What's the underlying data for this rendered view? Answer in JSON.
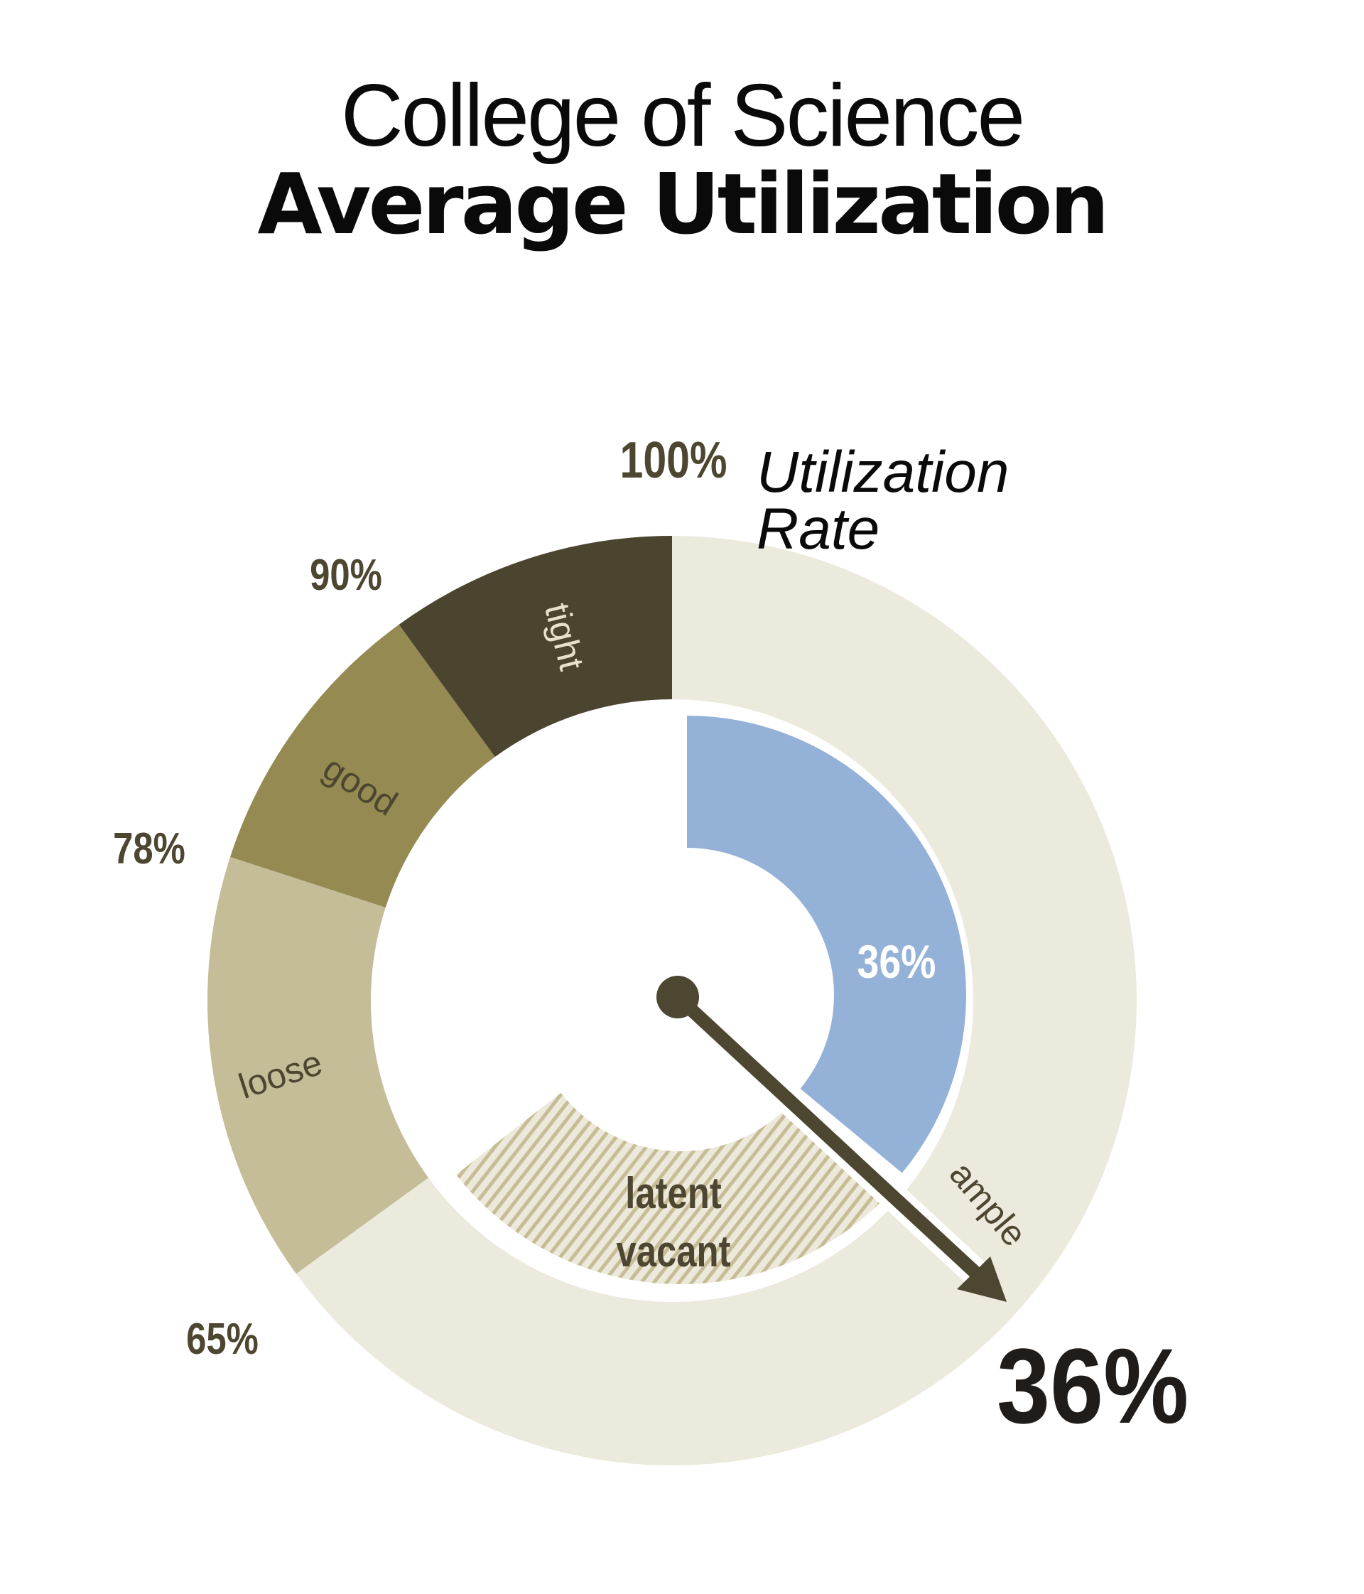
{
  "title": {
    "line1": "College of Science",
    "line2": "Average Utilization"
  },
  "legend": {
    "line1": "Utilization",
    "line2": "Rate"
  },
  "colors": {
    "tight": "#4b4530",
    "good": "#958a52",
    "loose": "#c5bd98",
    "ample": "#ece9dd",
    "utilization": "#94b2d8",
    "latent_bg": "#ece8da",
    "latent_stripe": "#c6bd96",
    "needle": "#4d4630",
    "label_dark": "#4d4630",
    "label_light": "#e8e2cc"
  },
  "gauge": {
    "ticks": [
      {
        "label": "100%"
      },
      {
        "label": "90%"
      },
      {
        "label": "78%"
      },
      {
        "label": "65%"
      }
    ],
    "bands": [
      {
        "label": "tight"
      },
      {
        "label": "good"
      },
      {
        "label": "loose"
      },
      {
        "label": "ample"
      }
    ],
    "inner_value_label": "36%",
    "latent_label_line1": "latent",
    "latent_label_line2": "vacant",
    "big_value": "36%"
  },
  "chart_data": {
    "type": "gauge",
    "title": "College of Science Average Utilization",
    "subtitle": "Utilization Rate",
    "value": 36,
    "value_label": "36%",
    "scale_ticks": [
      100,
      90,
      78,
      65
    ],
    "scale_tick_angles_deg": [
      0,
      -36,
      -72,
      -126
    ],
    "bands": [
      {
        "name": "tight",
        "from": 90,
        "to": 100,
        "angle_from": -36,
        "angle_to": 0
      },
      {
        "name": "good",
        "from": 78,
        "to": 90,
        "angle_from": -72,
        "angle_to": -36
      },
      {
        "name": "loose",
        "from": 65,
        "to": 78,
        "angle_from": -126,
        "angle_to": -72
      },
      {
        "name": "ample",
        "from": 0,
        "to": 65,
        "angle_from": 0,
        "angle_to": 234
      }
    ],
    "inner_series": [
      {
        "name": "utilization",
        "value": 36,
        "angle_from": 0,
        "angle_to": 129.6
      },
      {
        "name": "latent vacant",
        "angle_from": 133,
        "angle_to": 232
      }
    ],
    "needle_angle_deg": 132.8
  }
}
